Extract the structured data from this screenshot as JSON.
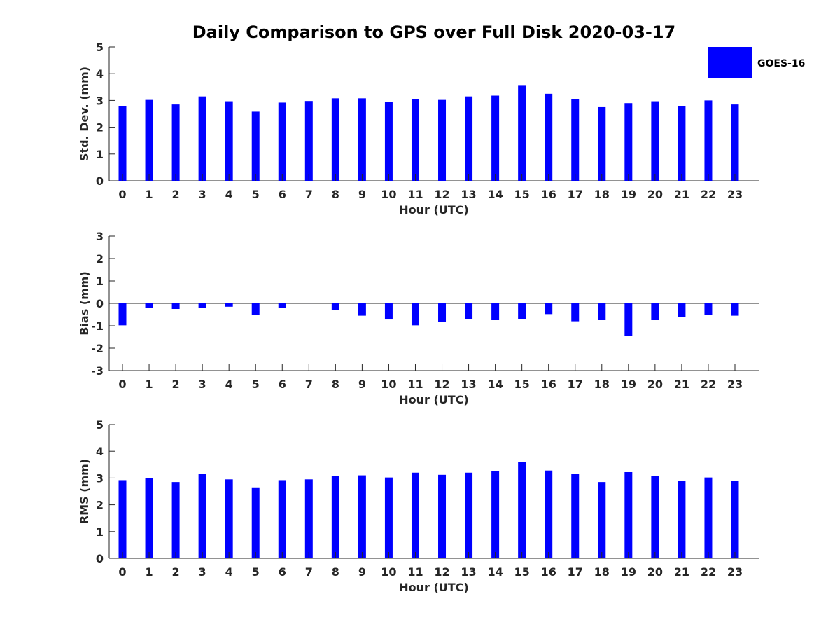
{
  "title": "Daily Comparison to GPS over Full Disk 2020-03-17",
  "legend": {
    "label": "GOES-16",
    "color": "#0000ff"
  },
  "chart_data": [
    {
      "type": "bar",
      "name": "std-dev",
      "xlabel": "Hour (UTC)",
      "ylabel": "Std. Dev. (mm)",
      "ylim": [
        0,
        5
      ],
      "yticks": [
        0,
        1,
        2,
        3,
        4,
        5
      ],
      "categories": [
        "0",
        "1",
        "2",
        "3",
        "4",
        "5",
        "6",
        "7",
        "8",
        "9",
        "10",
        "11",
        "12",
        "13",
        "14",
        "15",
        "16",
        "17",
        "18",
        "19",
        "20",
        "21",
        "22",
        "23"
      ],
      "series": [
        {
          "name": "GOES-16",
          "values": [
            2.78,
            3.02,
            2.85,
            3.15,
            2.97,
            2.58,
            2.92,
            2.98,
            3.08,
            3.08,
            2.95,
            3.05,
            3.02,
            3.15,
            3.18,
            3.55,
            3.25,
            3.05,
            2.75,
            2.9,
            2.97,
            2.8,
            3.0,
            2.85
          ]
        }
      ]
    },
    {
      "type": "bar",
      "name": "bias",
      "xlabel": "Hour (UTC)",
      "ylabel": "Bias (mm)",
      "ylim": [
        -3,
        3
      ],
      "yticks": [
        -3,
        -2,
        -1,
        0,
        1,
        2,
        3
      ],
      "zero_line": true,
      "categories": [
        "0",
        "1",
        "2",
        "3",
        "4",
        "5",
        "6",
        "7",
        "8",
        "9",
        "10",
        "11",
        "12",
        "13",
        "14",
        "15",
        "16",
        "17",
        "18",
        "19",
        "20",
        "21",
        "22",
        "23"
      ],
      "series": [
        {
          "name": "GOES-16",
          "values": [
            -0.98,
            -0.2,
            -0.25,
            -0.2,
            -0.15,
            -0.5,
            -0.2,
            0.0,
            -0.3,
            -0.55,
            -0.72,
            -0.98,
            -0.82,
            -0.7,
            -0.75,
            -0.7,
            -0.48,
            -0.8,
            -0.75,
            -1.45,
            -0.75,
            -0.62,
            -0.5,
            -0.55
          ]
        }
      ]
    },
    {
      "type": "bar",
      "name": "rms",
      "xlabel": "Hour (UTC)",
      "ylabel": "RMS (mm)",
      "ylim": [
        0,
        5
      ],
      "yticks": [
        0,
        1,
        2,
        3,
        4,
        5
      ],
      "categories": [
        "0",
        "1",
        "2",
        "3",
        "4",
        "5",
        "6",
        "7",
        "8",
        "9",
        "10",
        "11",
        "12",
        "13",
        "14",
        "15",
        "16",
        "17",
        "18",
        "19",
        "20",
        "21",
        "22",
        "23"
      ],
      "series": [
        {
          "name": "GOES-16",
          "values": [
            2.92,
            3.0,
            2.85,
            3.15,
            2.95,
            2.65,
            2.92,
            2.95,
            3.08,
            3.1,
            3.02,
            3.2,
            3.12,
            3.2,
            3.25,
            3.6,
            3.28,
            3.15,
            2.85,
            3.22,
            3.08,
            2.88,
            3.02,
            2.88
          ]
        }
      ]
    }
  ]
}
